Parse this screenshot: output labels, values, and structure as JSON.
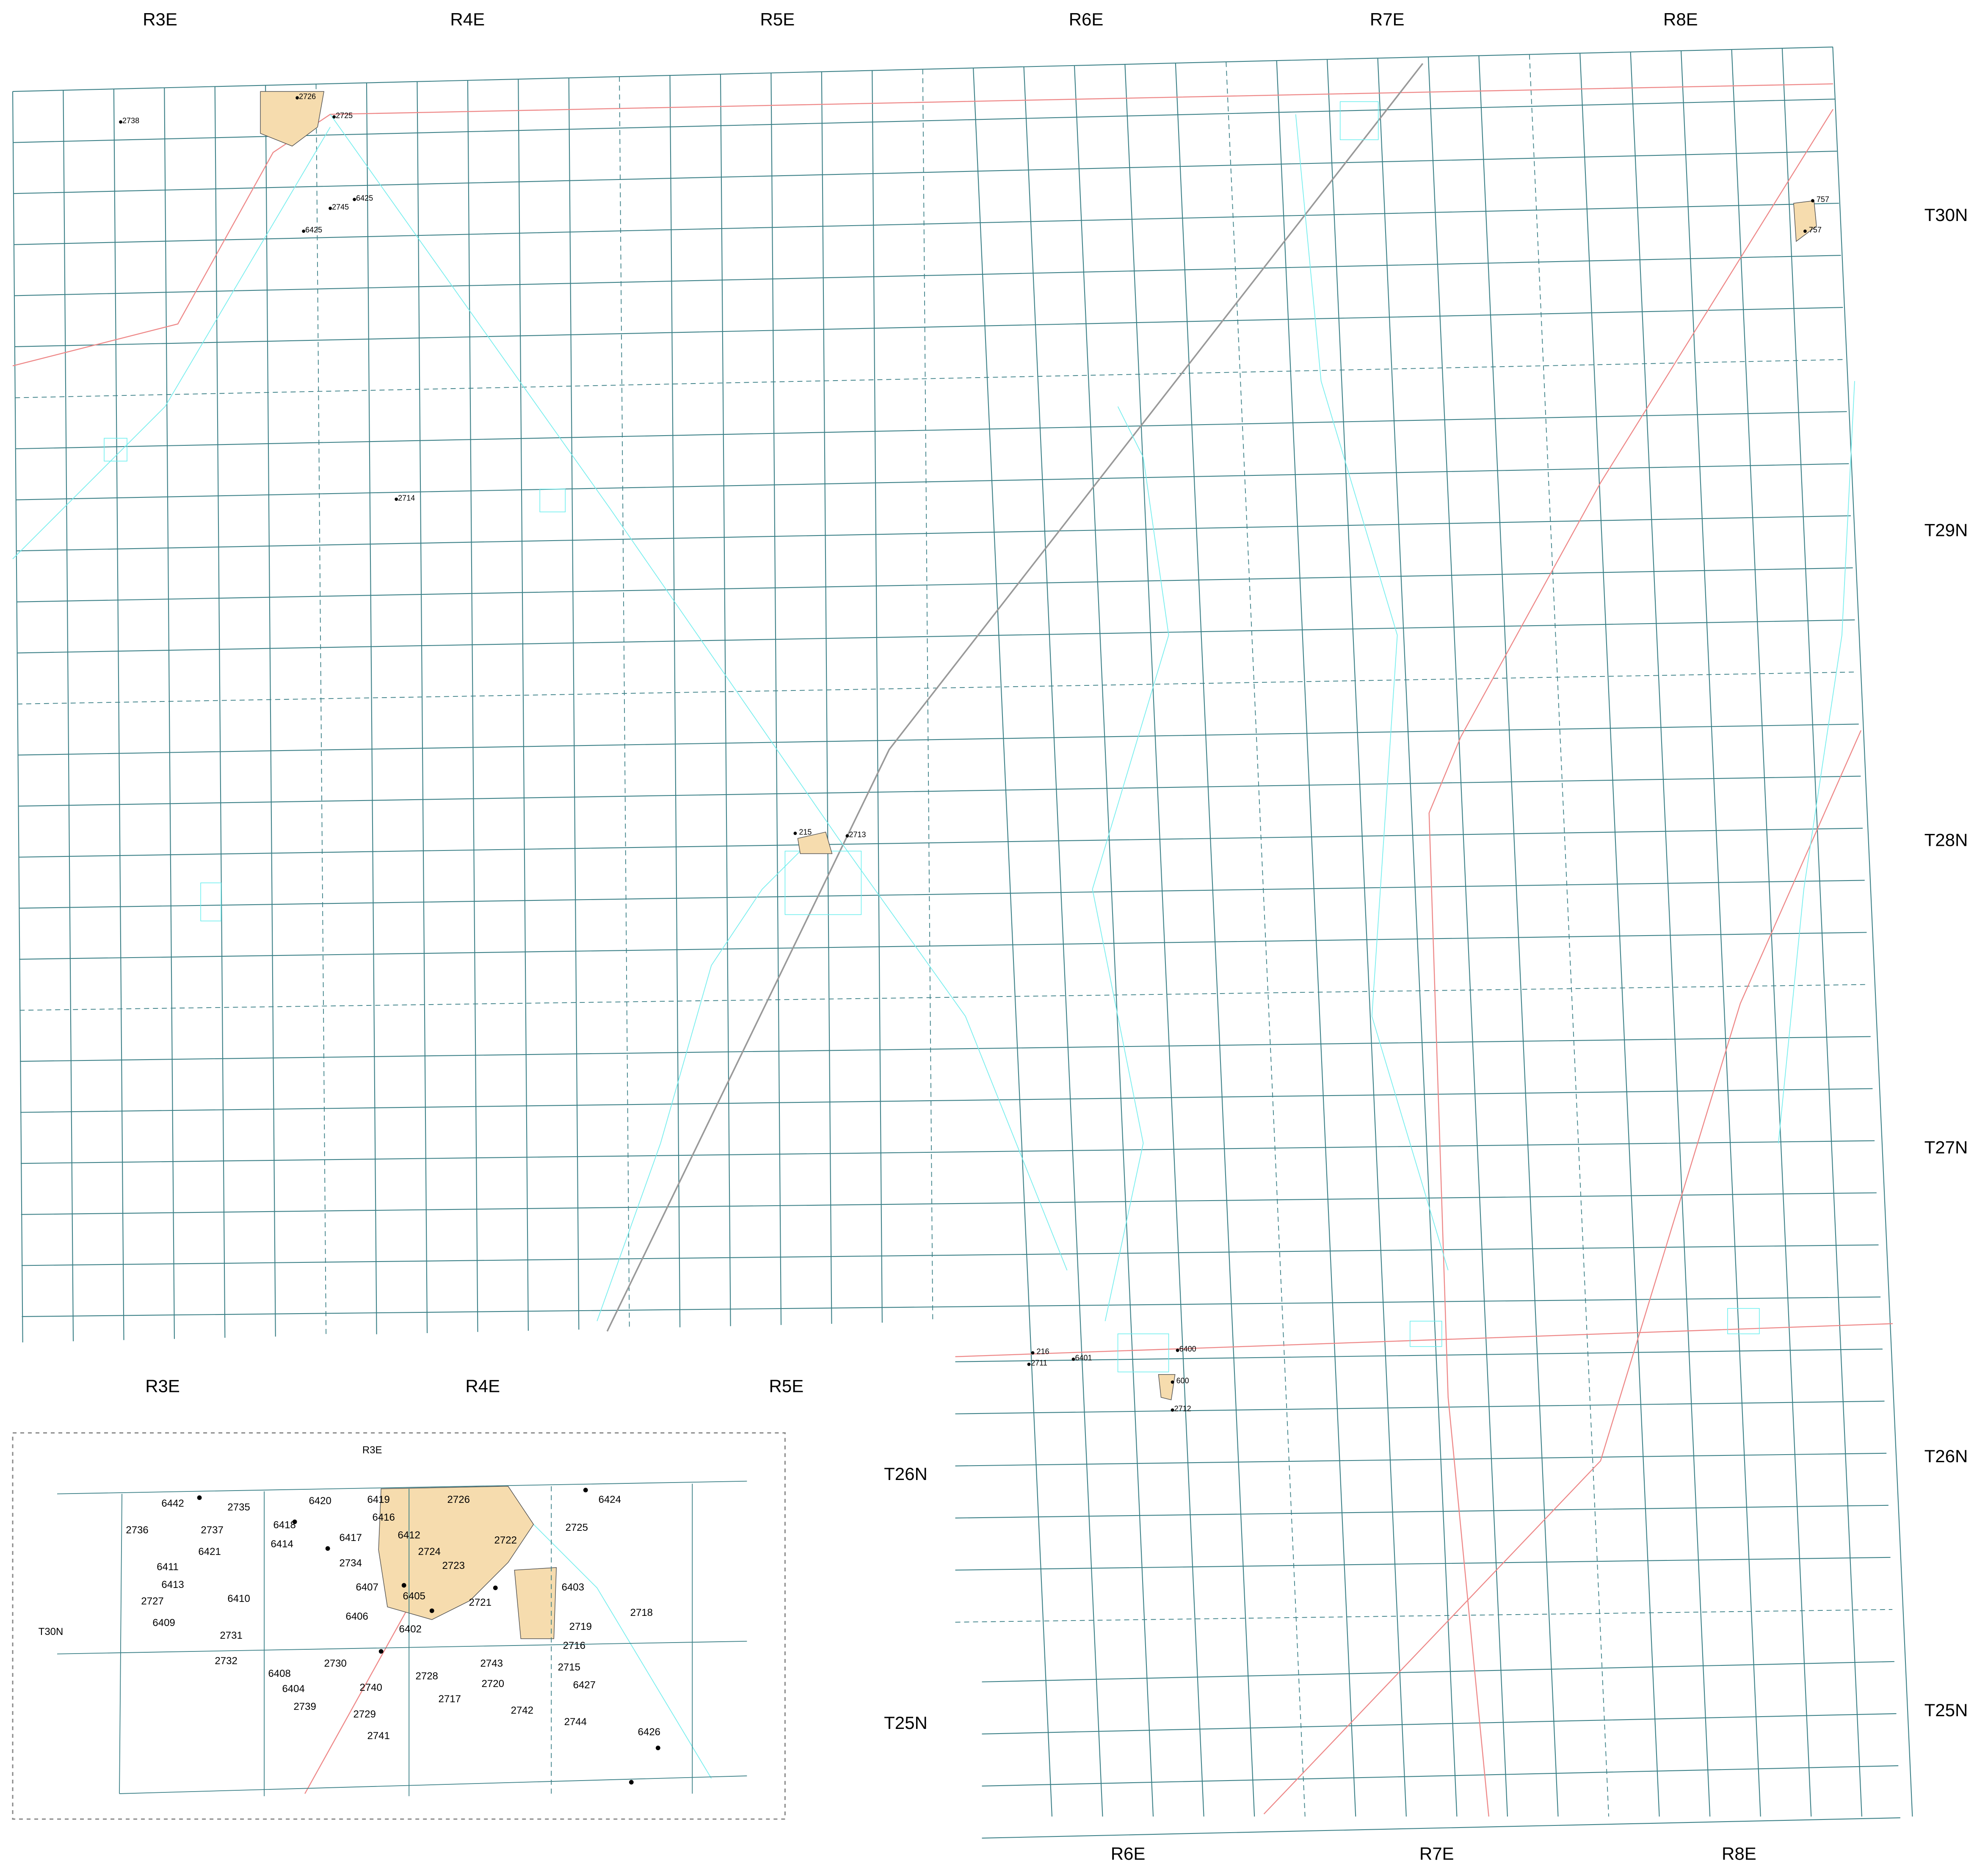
{
  "range_labels_top": [
    "R3E",
    "R4E",
    "R5E",
    "R6E",
    "R7E",
    "R8E"
  ],
  "range_labels_middle": [
    "R3E",
    "R4E",
    "R5E"
  ],
  "range_labels_bottom": [
    "R6E",
    "R7E",
    "R8E"
  ],
  "township_labels_right": [
    "T30N",
    "T29N",
    "T28N",
    "T27N",
    "T26N",
    "T25N"
  ],
  "township_labels_left": [
    "T26N",
    "T25N"
  ],
  "main_map_wells": [
    "2738",
    "2726",
    "2725",
    "6425",
    "2745",
    "6425",
    "2714",
    "215",
    "2713",
    "757",
    "757",
    "216",
    "2711",
    "6401",
    "6400",
    "600",
    "2712"
  ],
  "inset": {
    "range_label": "R3E",
    "township_label": "T30N",
    "wells": [
      "6442",
      "2735",
      "6420",
      "6419",
      "2726",
      "6424",
      "2736",
      "2737",
      "6418",
      "6416",
      "2725",
      "6421",
      "6414",
      "6417",
      "6412",
      "2722",
      "2724",
      "6411",
      "2734",
      "2723",
      "6413",
      "6407",
      "6403",
      "2727",
      "6410",
      "6405",
      "2721",
      "2718",
      "6409",
      "6406",
      "2719",
      "2731",
      "6402",
      "2716",
      "2732",
      "2730",
      "2743",
      "2715",
      "6408",
      "2728",
      "2720",
      "6427",
      "6404",
      "2740",
      "2717",
      "2739",
      "2742",
      "2729",
      "2744",
      "6426",
      "2741"
    ]
  }
}
